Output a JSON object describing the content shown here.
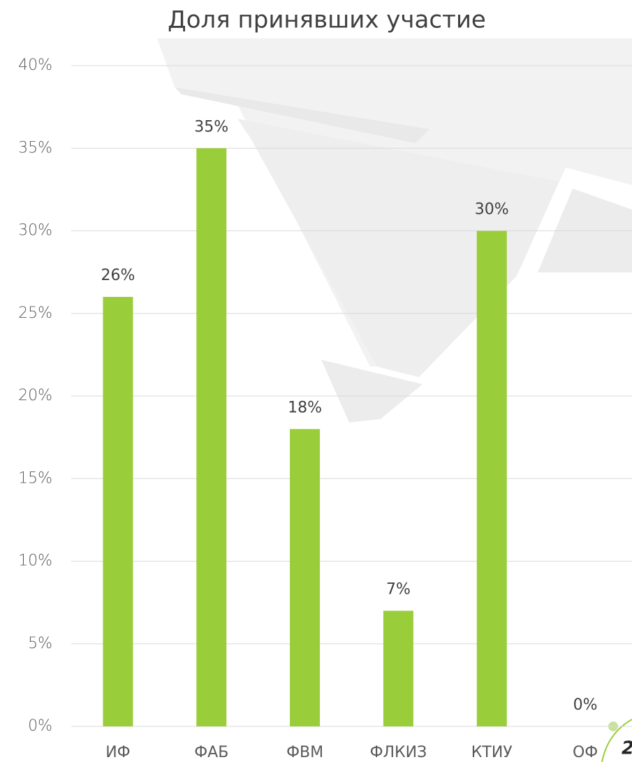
{
  "chart_data": {
    "type": "bar",
    "title": "Доля принявших участие",
    "categories": [
      "ИФ",
      "ФАБ",
      "ФВМ",
      "ФЛКИЗ",
      "КТИУ",
      "ОФ"
    ],
    "values": [
      26,
      35,
      18,
      7,
      30,
      0
    ],
    "value_labels": [
      "26%",
      "35%",
      "18%",
      "7%",
      "30%",
      "0%"
    ],
    "color": "#9acd3a",
    "ylim": [
      0,
      40
    ],
    "yticks": [
      {
        "value": 0,
        "label": "0%"
      },
      {
        "value": 5,
        "label": "5%"
      },
      {
        "value": 10,
        "label": "10%"
      },
      {
        "value": 15,
        "label": "15%"
      },
      {
        "value": 20,
        "label": "20%"
      },
      {
        "value": 25,
        "label": "25%"
      },
      {
        "value": 30,
        "label": "30%"
      },
      {
        "value": 35,
        "label": "35%"
      },
      {
        "value": 40,
        "label": "40%"
      }
    ],
    "grid": true
  },
  "page_number": "2"
}
